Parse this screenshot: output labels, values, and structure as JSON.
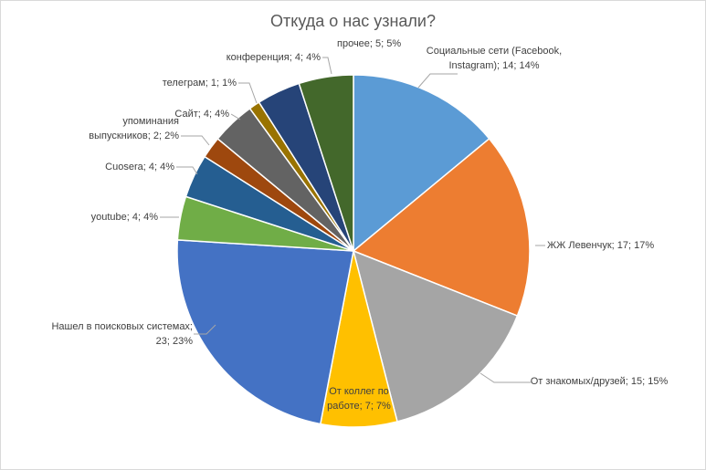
{
  "chart_data": {
    "type": "pie",
    "title": "Откуда о нас узнали?",
    "labels": [
      "Социальные сети (Facebook, Instagram); 14; 14%",
      "ЖЖ Левенчук;  17; 17%",
      "От знакомых/друзей; 15; 15%",
      "От коллег по работе; 7; 7%",
      "Нашел в поисковых системах; 23; 23%",
      "youtube; 4; 4%",
      "Cuosera; 4; 4%",
      "упоминания выпускников; 2; 2%",
      "Сайт; 4; 4%",
      "телеграм; 1; 1%",
      "конференция;  4; 4%",
      "прочее;  5; 5%"
    ],
    "values": [
      14,
      17,
      15,
      7,
      23,
      4,
      4,
      2,
      4,
      1,
      4,
      5
    ],
    "colors": [
      "#5b9bd5",
      "#ed7d31",
      "#a5a5a5",
      "#ffc000",
      "#4472c4",
      "#70ad47",
      "#255e91",
      "#9e480e",
      "#636363",
      "#997300",
      "#264478",
      "#43682b"
    ]
  }
}
